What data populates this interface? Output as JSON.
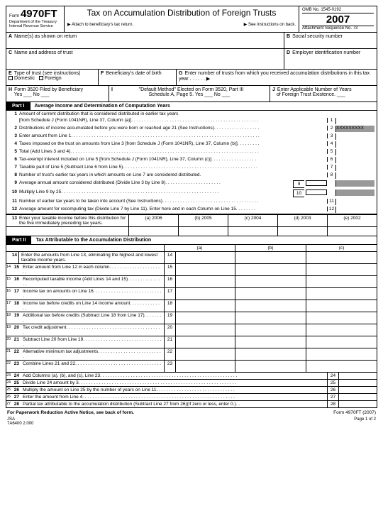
{
  "header": {
    "form_word": "Form",
    "form_number": "4970FT",
    "dept1": "Department of the Treasury",
    "dept2": "Internal Revenue Service",
    "title": "Tax on Accumulation Distribution of Foreign Trusts",
    "sub_left": "▶ Attach to beneficiary's tax return.",
    "sub_right": "▶ See instructions on back.",
    "omb": "OMB No. 1545-0192",
    "year": "2007",
    "seq": "Attachment Sequence No. 73"
  },
  "boxA": "Name(s) as shown on return",
  "boxB": "Social security number",
  "boxC": "Name and address of trust",
  "boxD": "Employer identification number",
  "boxE": {
    "label": "Type of trust (see instructions)",
    "opt1": "Domestic",
    "opt2": "Foreign"
  },
  "boxF": "Beneficiary's date of birth",
  "boxG": "Enter number of trusts from which you received accumulation distributions in this tax year . . . . . . ▶",
  "boxH": {
    "l1": "Form 3520 Filed by Beneficiary",
    "l2": "Yes ___  No ___"
  },
  "boxI": {
    "l1": "\"Default Method\" Elected on Form 3520, Part III",
    "l2": "Schedule A, Page 5.   Yes ___ No ___"
  },
  "boxJ": {
    "l1": "Enter Applicable Number of Years",
    "l2": "of Foreign Trust Existence. ___"
  },
  "part1": {
    "label": "Part I",
    "title": "Average Income and Determination of Computation Years"
  },
  "p1_lines": [
    {
      "n": "1",
      "t": "Amount of current distribution that is considered distributed in earlier tax years"
    },
    {
      "n": "",
      "t": "[from Schedule J (Form 1041NR), Line 37, Column (a)]. . . . . . . . . . . . . . . . . . . . . . . . . . . . . . . . . . . . . . . . . . . . . . . . . .",
      "b": "1"
    },
    {
      "n": "2",
      "t": "Distributions of income accumulated before you were born or reached age 21 (See Instructions). . . . . . . . . . . . . . . . . .",
      "b": "2",
      "shade": true
    },
    {
      "n": "3",
      "t": "Enter amount from Line 1. . . . . . . . . . . . . . . . . . . . . . . . . . . . . . . . . . . . . . . . . . . . . . . . . . . . . . . . . . . . . . . . . . . . . . . . . .",
      "b": "3"
    },
    {
      "n": "4",
      "t": "Taxes imposed on the trust on amounts from Line 3 [from Schedule J (Form 1041NR), Line 37, Column (b)]. . . . . . . . .",
      "b": "4"
    },
    {
      "n": "5",
      "t": "Total (Add Lines 3 and 4). . . . . . . . . . . . . . . . . . . . . . . . . . . . . . . . . . . . . . . . . . . . . . . . . . . . . . . . . . . . . . . . . . . . . . . . . .",
      "b": "5"
    },
    {
      "n": "6",
      "t": "Tax-exempt interest included on Line 5 [from Schedule J (Form 1041NR), Line 37, Column (c)]. . . . . . . . . . . . . . . . . .",
      "b": "6"
    },
    {
      "n": "7",
      "t": "Taxable part of Line 5 (Subtract Line 6 from Line 5). . . . . . . . . . . . . . . . . . . . . . . . . . . . . . . . . . . . . . . . . . . . . . . . . . . . .",
      "b": "7"
    },
    {
      "n": "8",
      "t": "Number of trust's earlier tax years in which amounts on Line 7 are considered distributed.",
      "b": "8"
    },
    {
      "n": "9",
      "t": "Average annual amount considered distributed (Divide Line 3 by Line 8). . . . . . . . . . . . . . . . . . . . . .",
      "sm": "9"
    },
    {
      "n": "10",
      "t": "Multiply Line 9 by 25. . . . . . . . . . . . . . . . . . . . . . . . . . . . . . . . . . . . . . . . . . . . . . . . . . . . . . . . . . . . . .",
      "sm": "10"
    },
    {
      "n": "11",
      "t": "Number of earlier tax years to be taken into account (See Instructions). . . . . . . . . . . . . . . . . . . . . . . . . . . . . . . . . . . . . .",
      "b": "11"
    },
    {
      "n": "12",
      "t": "Average amount for recomputing tax (Divide Line 7 by Line 11).  Enter here and in each Column on Line 15. . . . . . . .",
      "b": "12"
    }
  ],
  "p1_13": {
    "n": "13",
    "t": "Enter your taxable income before this distribution for the five immediately preceding tax years."
  },
  "yrs": [
    "(a) 2006",
    "(b) 2005",
    "(c) 2004",
    "(d) 2003",
    "(e) 2002"
  ],
  "part2": {
    "label": "Part II",
    "title": "Tax Attributable to the Accumulation Distribution"
  },
  "abc": [
    "(a)",
    "(b)",
    "(c)"
  ],
  "p2_14": {
    "n": "14",
    "t": "Enter the amounts from Line 13, eliminating the highest and lowest taxable income years.",
    "b": "14"
  },
  "p2_lines": [
    {
      "n": "15",
      "s": "14",
      "t": "Enter amount from Line 12 in each column. . . . . . . . . . . . . . . . . . . . . .",
      "b": "15"
    },
    {
      "n": "16",
      "s": "15",
      "t": "Recomputed taxable income (Add Lines 14 and 15). . . . . . . . . . . . . . .",
      "b": "16"
    },
    {
      "n": "17",
      "s": "16",
      "t": "Income tax on amounts on Line 16. . . . . . . . . . . . . . . . . . . . . . . . . . . .",
      "b": "17"
    },
    {
      "n": "18",
      "s": "17",
      "t": "Income tax before credits on Line 14 income amount. . . . . . . . . . . . . .",
      "b": "18"
    },
    {
      "n": "19",
      "s": "18",
      "t": "Additional tax before credits (Subtract Line 18 from Line 17). . . . . . . .",
      "b": "19"
    },
    {
      "n": "20",
      "s": "19",
      "t": "Tax credit adjustment. . . . . . . . . . . . . . . . . . . . . . . . . . . . . . . . . . . . . .",
      "b": "20"
    },
    {
      "n": "21",
      "s": "20",
      "t": "Subtract Line 20 from Line 19. . . . . . . . . . . . . . . . . . . . . . . . . . . . . . . .",
      "b": "21"
    },
    {
      "n": "22",
      "s": "21",
      "t": "Alternative minimum tax adjustments. . . . . . . . . . . . . . . . . . . . . . . . . .",
      "b": "22"
    },
    {
      "n": "23",
      "s": "22",
      "t": "Combine Lines 21 and 22. . . . . . . . . . . . . . . . . . . . . . . . . . . . . . . . . . .",
      "b": "23"
    }
  ],
  "p2_bottom": [
    {
      "n": "24",
      "s": "23",
      "t": "Add Columns (a), (b), and (c), Line 23. . . . . . . . . . . . . . . . . . . . . . . . . . . . . . . . . . . . . . . . . . . . . . . . . . . . . .",
      "b": "24"
    },
    {
      "n": "25",
      "s": "24",
      "t": "Divide Line 24 amount by 3. . . . . . . . . . . . . . . . . . . . . . . . . . . . . . . . . . . . . . . . . . . . . . . . . . . . . . . . . . . . . .",
      "b": "25"
    },
    {
      "n": "26",
      "s": "25",
      "t": "Multiply the amount on Line 25 by the number of years on Line 11. . . . . . . . . . . . . . . . . . . . . . . . . . . . . . .",
      "b": "26"
    },
    {
      "n": "27",
      "s": "26",
      "t": "Enter the amount from Line 4. . . . . . . . . . . . . . . . . . . . . . . . . . . . . . . . . . . . . . . . . . . . . . . . . . . . . . . . . . . .",
      "b": "27"
    },
    {
      "n": "28",
      "s": "27",
      "t": "Partial tax attributable to the accumulation distribution (Subtract Line 27 from 26)(If zero or less, enter 0.). .",
      "b": "28"
    }
  ],
  "footer": {
    "l": "For Paperwork Reduction Active Notice, see back of form.",
    "r": "Form 4970FT (2007)"
  },
  "btm": {
    "l": "JSA",
    "m": "7A6400 2.000",
    "r": "Page 1 of 2"
  }
}
